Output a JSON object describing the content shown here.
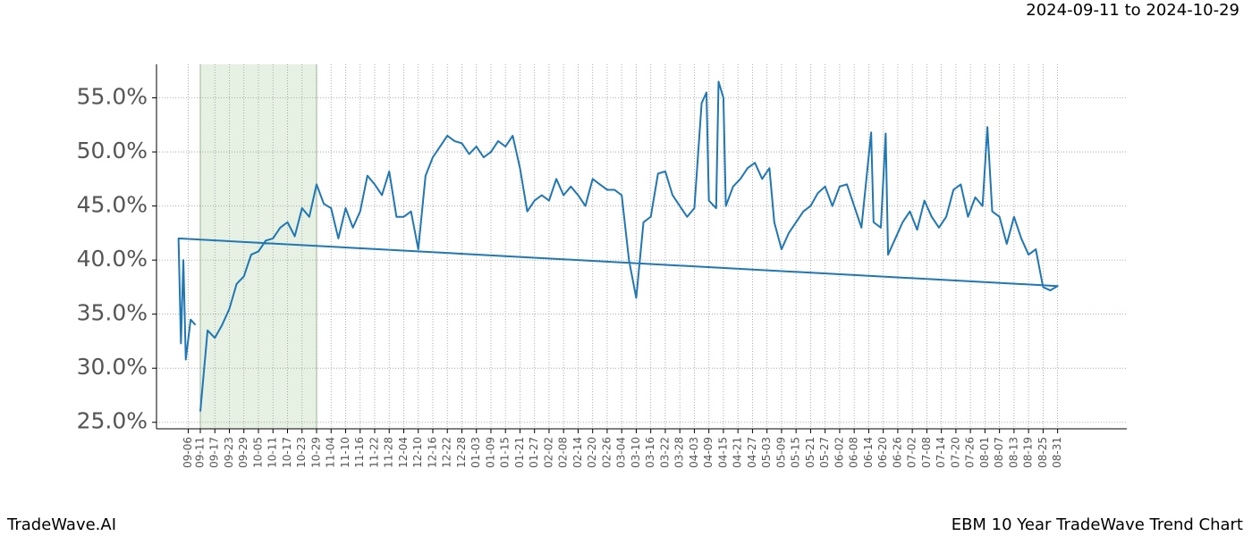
{
  "chart_data": {
    "type": "line",
    "title": "2024-09-11 to 2024-10-29",
    "footer_left": "TradeWave.AI",
    "footer_right": "EBM 10 Year TradeWave Trend Chart",
    "color": "#1f77b4",
    "highlight": [
      "09-11",
      "10-29"
    ],
    "highlight_color": "#e6f0e3",
    "grid": true,
    "ylim": [
      24.4,
      58.1
    ],
    "yticks": [
      {
        "value": 25,
        "label": "25.0%"
      },
      {
        "value": 30,
        "label": "30.0%"
      },
      {
        "value": 35,
        "label": "35.0%"
      },
      {
        "value": 40,
        "label": "40.0%"
      },
      {
        "value": 45,
        "label": "45.0%"
      },
      {
        "value": 50,
        "label": "50.0%"
      },
      {
        "value": 55,
        "label": "55.0%"
      }
    ],
    "xticks": [
      "09-11",
      "09-17",
      "09-23",
      "09-29",
      "10-05",
      "10-11",
      "10-17",
      "10-23",
      "10-29",
      "11-04",
      "11-10",
      "11-16",
      "11-22",
      "11-28",
      "12-04",
      "12-10",
      "12-16",
      "12-22",
      "12-28",
      "01-03",
      "01-09",
      "01-15",
      "01-21",
      "01-27",
      "02-02",
      "02-08",
      "02-14",
      "02-20",
      "02-26",
      "03-04",
      "03-10",
      "03-16",
      "03-22",
      "03-28",
      "04-03",
      "04-09",
      "04-15",
      "04-21",
      "04-27",
      "05-03",
      "05-09",
      "05-15",
      "05-21",
      "05-27",
      "06-02",
      "06-08",
      "06-14",
      "06-20",
      "06-26",
      "07-02",
      "07-08",
      "07-14",
      "07-20",
      "07-26",
      "08-01",
      "08-07",
      "08-13",
      "08-19",
      "08-25",
      "08-31",
      "09-06"
    ],
    "x": [
      "09-11",
      "09-14",
      "09-17",
      "09-20",
      "09-23",
      "09-26",
      "09-29",
      "10-02",
      "10-05",
      "10-08",
      "10-11",
      "10-14",
      "10-17",
      "10-20",
      "10-23",
      "10-26",
      "10-29",
      "11-01",
      "11-04",
      "11-07",
      "11-10",
      "11-13",
      "11-16",
      "11-19",
      "11-22",
      "11-25",
      "11-28",
      "12-01",
      "12-04",
      "12-07",
      "12-10",
      "12-13",
      "12-16",
      "12-19",
      "12-22",
      "12-25",
      "12-28",
      "12-31",
      "01-03",
      "01-06",
      "01-09",
      "01-12",
      "01-15",
      "01-18",
      "01-21",
      "01-24",
      "01-27",
      "01-30",
      "02-02",
      "02-05",
      "02-08",
      "02-11",
      "02-14",
      "02-17",
      "02-20",
      "02-23",
      "02-26",
      "03-01",
      "03-04",
      "03-07",
      "03-10",
      "03-13",
      "03-16",
      "03-19",
      "03-22",
      "03-25",
      "03-28",
      "03-31",
      "04-03",
      "04-06",
      "04-08",
      "04-09",
      "04-12",
      "04-13",
      "04-15",
      "04-16",
      "04-19",
      "04-22",
      "04-25",
      "04-28",
      "05-01",
      "05-04",
      "05-06",
      "05-09",
      "05-12",
      "05-15",
      "05-18",
      "05-21",
      "05-24",
      "05-27",
      "05-30",
      "06-02",
      "06-05",
      "06-08",
      "06-11",
      "06-15",
      "06-16",
      "06-19",
      "06-21",
      "06-22",
      "06-25",
      "06-28",
      "07-01",
      "07-04",
      "07-07",
      "07-10",
      "07-13",
      "07-16",
      "07-19",
      "07-22",
      "07-25",
      "07-28",
      "07-31",
      "08-02",
      "08-04",
      "08-07",
      "08-10",
      "08-13",
      "08-16",
      "08-19",
      "08-22",
      "08-25",
      "08-28",
      "08-31",
      "09-02",
      "09-03",
      "09-04",
      "09-05",
      "09-07",
      "09-09"
    ],
    "values": [
      26.0,
      33.5,
      32.8,
      34.0,
      35.5,
      37.8,
      38.5,
      40.5,
      40.8,
      41.8,
      42.0,
      43.0,
      43.5,
      42.2,
      44.8,
      44.0,
      47.0,
      45.2,
      44.8,
      42.0,
      44.8,
      43.0,
      44.5,
      47.8,
      47.0,
      46.0,
      48.2,
      44.0,
      44.0,
      44.5,
      41.0,
      47.8,
      49.5,
      50.5,
      51.5,
      51.0,
      50.8,
      49.8,
      50.5,
      49.5,
      50.0,
      51.0,
      50.5,
      51.5,
      48.5,
      44.5,
      45.5,
      46.0,
      45.5,
      47.5,
      46.0,
      46.8,
      46.0,
      45.0,
      47.5,
      47.0,
      46.5,
      46.5,
      46.0,
      40.0,
      36.5,
      43.5,
      44.0,
      48.0,
      48.2,
      46.0,
      45.0,
      44.0,
      44.8,
      54.5,
      55.5,
      45.5,
      44.8,
      56.5,
      55.0,
      45.0,
      46.8,
      47.5,
      48.5,
      49.0,
      47.5,
      48.5,
      43.5,
      41.0,
      42.5,
      43.5,
      44.5,
      45.0,
      46.2,
      46.8,
      45.0,
      46.8,
      47.0,
      45.0,
      43.0,
      51.8,
      43.5,
      43.0,
      51.7,
      40.5,
      42.0,
      43.5,
      44.5,
      42.8,
      45.5,
      44.0,
      43.0,
      44.0,
      46.5,
      47.0,
      44.0,
      45.8,
      45.0,
      52.3,
      44.5,
      44.0,
      41.5,
      44.0,
      42.0,
      40.5,
      41.0,
      37.5,
      37.2,
      37.6,
      42.0,
      32.3,
      40.0,
      30.8,
      34.5,
      34.0
    ]
  }
}
